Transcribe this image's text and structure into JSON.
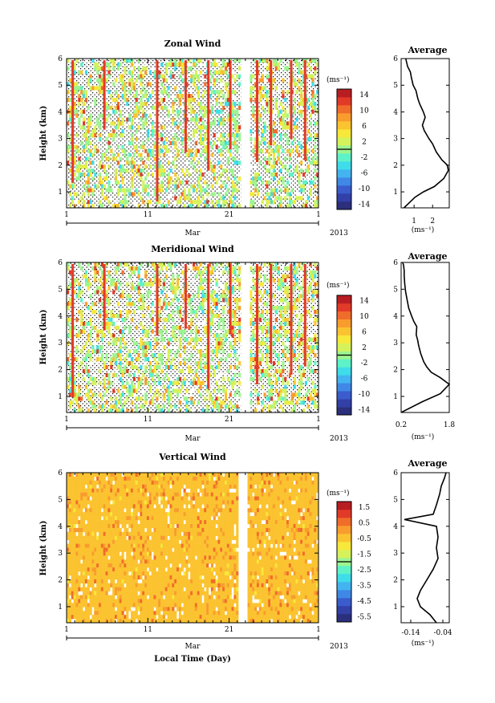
{
  "chart_data": [
    {
      "type": "heatmap",
      "title": "Zonal Wind",
      "ylabel": "Height (km)",
      "yticks": [
        "1",
        "2",
        "3",
        "4",
        "5",
        "6"
      ],
      "ylim": [
        0.4,
        6.0
      ],
      "xticks": [
        "1",
        "11",
        "21",
        "1"
      ],
      "month_label": "Mar",
      "year_label": "2013",
      "xlabel": "",
      "colorbar": {
        "unit": "(ms⁻¹)",
        "ticks": [
          "14",
          "10",
          "6",
          "2",
          "-2",
          "-6",
          "-10",
          "-14"
        ],
        "range": [
          -16,
          16
        ],
        "colors": [
          "#2b2f7c",
          "#3240a8",
          "#3a5ccc",
          "#3f88e6",
          "#43b4f0",
          "#3fdcea",
          "#5ef2c8",
          "#9cf590",
          "#d6f25a",
          "#f7e83a",
          "#fbc330",
          "#f89c2e",
          "#f06c2a",
          "#e23a28",
          "#b81d22"
        ]
      },
      "data_gap_days": [
        22.3,
        23.6
      ],
      "average_profile": {
        "title": "Average",
        "xlabel": "(ms⁻¹)",
        "xticks": [
          "1",
          "2"
        ],
        "xlim": [
          0.3,
          2.9
        ],
        "x": [
          0.45,
          0.75,
          1.05,
          1.5,
          2.1,
          2.6,
          2.85,
          2.8,
          2.5,
          2.2,
          2.0,
          1.8,
          1.55,
          1.45,
          1.6,
          1.5,
          1.3,
          1.2,
          1.1,
          0.95,
          0.85,
          0.8,
          0.65,
          0.6,
          0.55
        ],
        "y": [
          0.4,
          0.6,
          0.8,
          1.0,
          1.2,
          1.5,
          1.8,
          2.0,
          2.2,
          2.5,
          2.8,
          3.0,
          3.3,
          3.5,
          3.8,
          4.0,
          4.3,
          4.5,
          4.8,
          5.0,
          5.3,
          5.5,
          5.7,
          5.85,
          6.0
        ]
      }
    },
    {
      "type": "heatmap",
      "title": "Meridional Wind",
      "ylabel": "Height (km)",
      "yticks": [
        "1",
        "2",
        "3",
        "4",
        "5",
        "6"
      ],
      "ylim": [
        0.4,
        6.0
      ],
      "xticks": [
        "1",
        "11",
        "21",
        "1"
      ],
      "month_label": "Mar",
      "year_label": "2013",
      "xlabel": "",
      "colorbar": {
        "unit": "(ms⁻¹)",
        "ticks": [
          "14",
          "10",
          "6",
          "2",
          "-2",
          "-6",
          "-10",
          "-14"
        ],
        "range": [
          -16,
          16
        ],
        "colors": [
          "#2b2f7c",
          "#3240a8",
          "#3a5ccc",
          "#3f88e6",
          "#43b4f0",
          "#3fdcea",
          "#5ef2c8",
          "#9cf590",
          "#d6f25a",
          "#f7e83a",
          "#fbc330",
          "#f89c2e",
          "#f06c2a",
          "#e23a28",
          "#b81d22"
        ]
      },
      "data_gap_days": [
        22.3,
        23.6
      ],
      "average_profile": {
        "title": "Average",
        "xlabel": "(ms⁻¹)",
        "xticks": [
          "0.2",
          "1.8"
        ],
        "xlim": [
          0.2,
          1.8
        ],
        "x": [
          0.2,
          0.9,
          1.5,
          1.8,
          1.5,
          1.2,
          1.05,
          0.95,
          0.85,
          0.78,
          0.75,
          0.7,
          0.72,
          0.62,
          0.55,
          0.45,
          0.4,
          0.35,
          0.32,
          0.3,
          0.3,
          0.28,
          0.25
        ],
        "y": [
          0.4,
          0.8,
          1.1,
          1.45,
          1.7,
          1.9,
          2.1,
          2.3,
          2.6,
          2.9,
          3.1,
          3.3,
          3.6,
          3.8,
          4.0,
          4.3,
          4.6,
          4.9,
          5.2,
          5.5,
          5.7,
          5.9,
          6.0
        ]
      }
    },
    {
      "type": "heatmap",
      "title": "Vertical Wind",
      "ylabel": "Height (km)",
      "yticks": [
        "1",
        "2",
        "3",
        "4",
        "5",
        "6"
      ],
      "ylim": [
        0.4,
        6.0
      ],
      "xticks": [
        "1",
        "11",
        "21",
        "1"
      ],
      "month_label": "Mar",
      "year_label": "2013",
      "xlabel": "Local Time (Day)",
      "colorbar": {
        "unit": "(ms⁻¹)",
        "ticks": [
          "1.5",
          "0.5",
          "-0.5",
          "-1.5",
          "-2.5",
          "-3.5",
          "-4.5",
          "-5.5"
        ],
        "range": [
          -6,
          2
        ],
        "colors": [
          "#2b2f7c",
          "#3240a8",
          "#3a5ccc",
          "#3f88e6",
          "#43b4f0",
          "#3fdcea",
          "#5ef2c8",
          "#9cf590",
          "#d6f25a",
          "#f7e83a",
          "#fbc330",
          "#f89c2e",
          "#f06c2a",
          "#e23a28",
          "#b81d22"
        ]
      },
      "data_gap_days": [
        22.1,
        23.3
      ],
      "average_profile": {
        "title": "Average",
        "xlabel": "(ms⁻¹)",
        "xticks": [
          "-0.14",
          "-0.04"
        ],
        "xlim": [
          -0.17,
          -0.02
        ],
        "x": [
          -0.06,
          -0.08,
          -0.11,
          -0.12,
          -0.11,
          -0.09,
          -0.07,
          -0.055,
          -0.06,
          -0.055,
          -0.06,
          -0.16,
          -0.07,
          -0.06,
          -0.05,
          -0.045,
          -0.035,
          -0.03
        ],
        "y": [
          0.4,
          0.7,
          1.0,
          1.3,
          1.6,
          2.0,
          2.4,
          2.8,
          3.2,
          3.6,
          4.0,
          4.25,
          4.45,
          4.8,
          5.2,
          5.5,
          5.8,
          6.0
        ]
      }
    }
  ]
}
